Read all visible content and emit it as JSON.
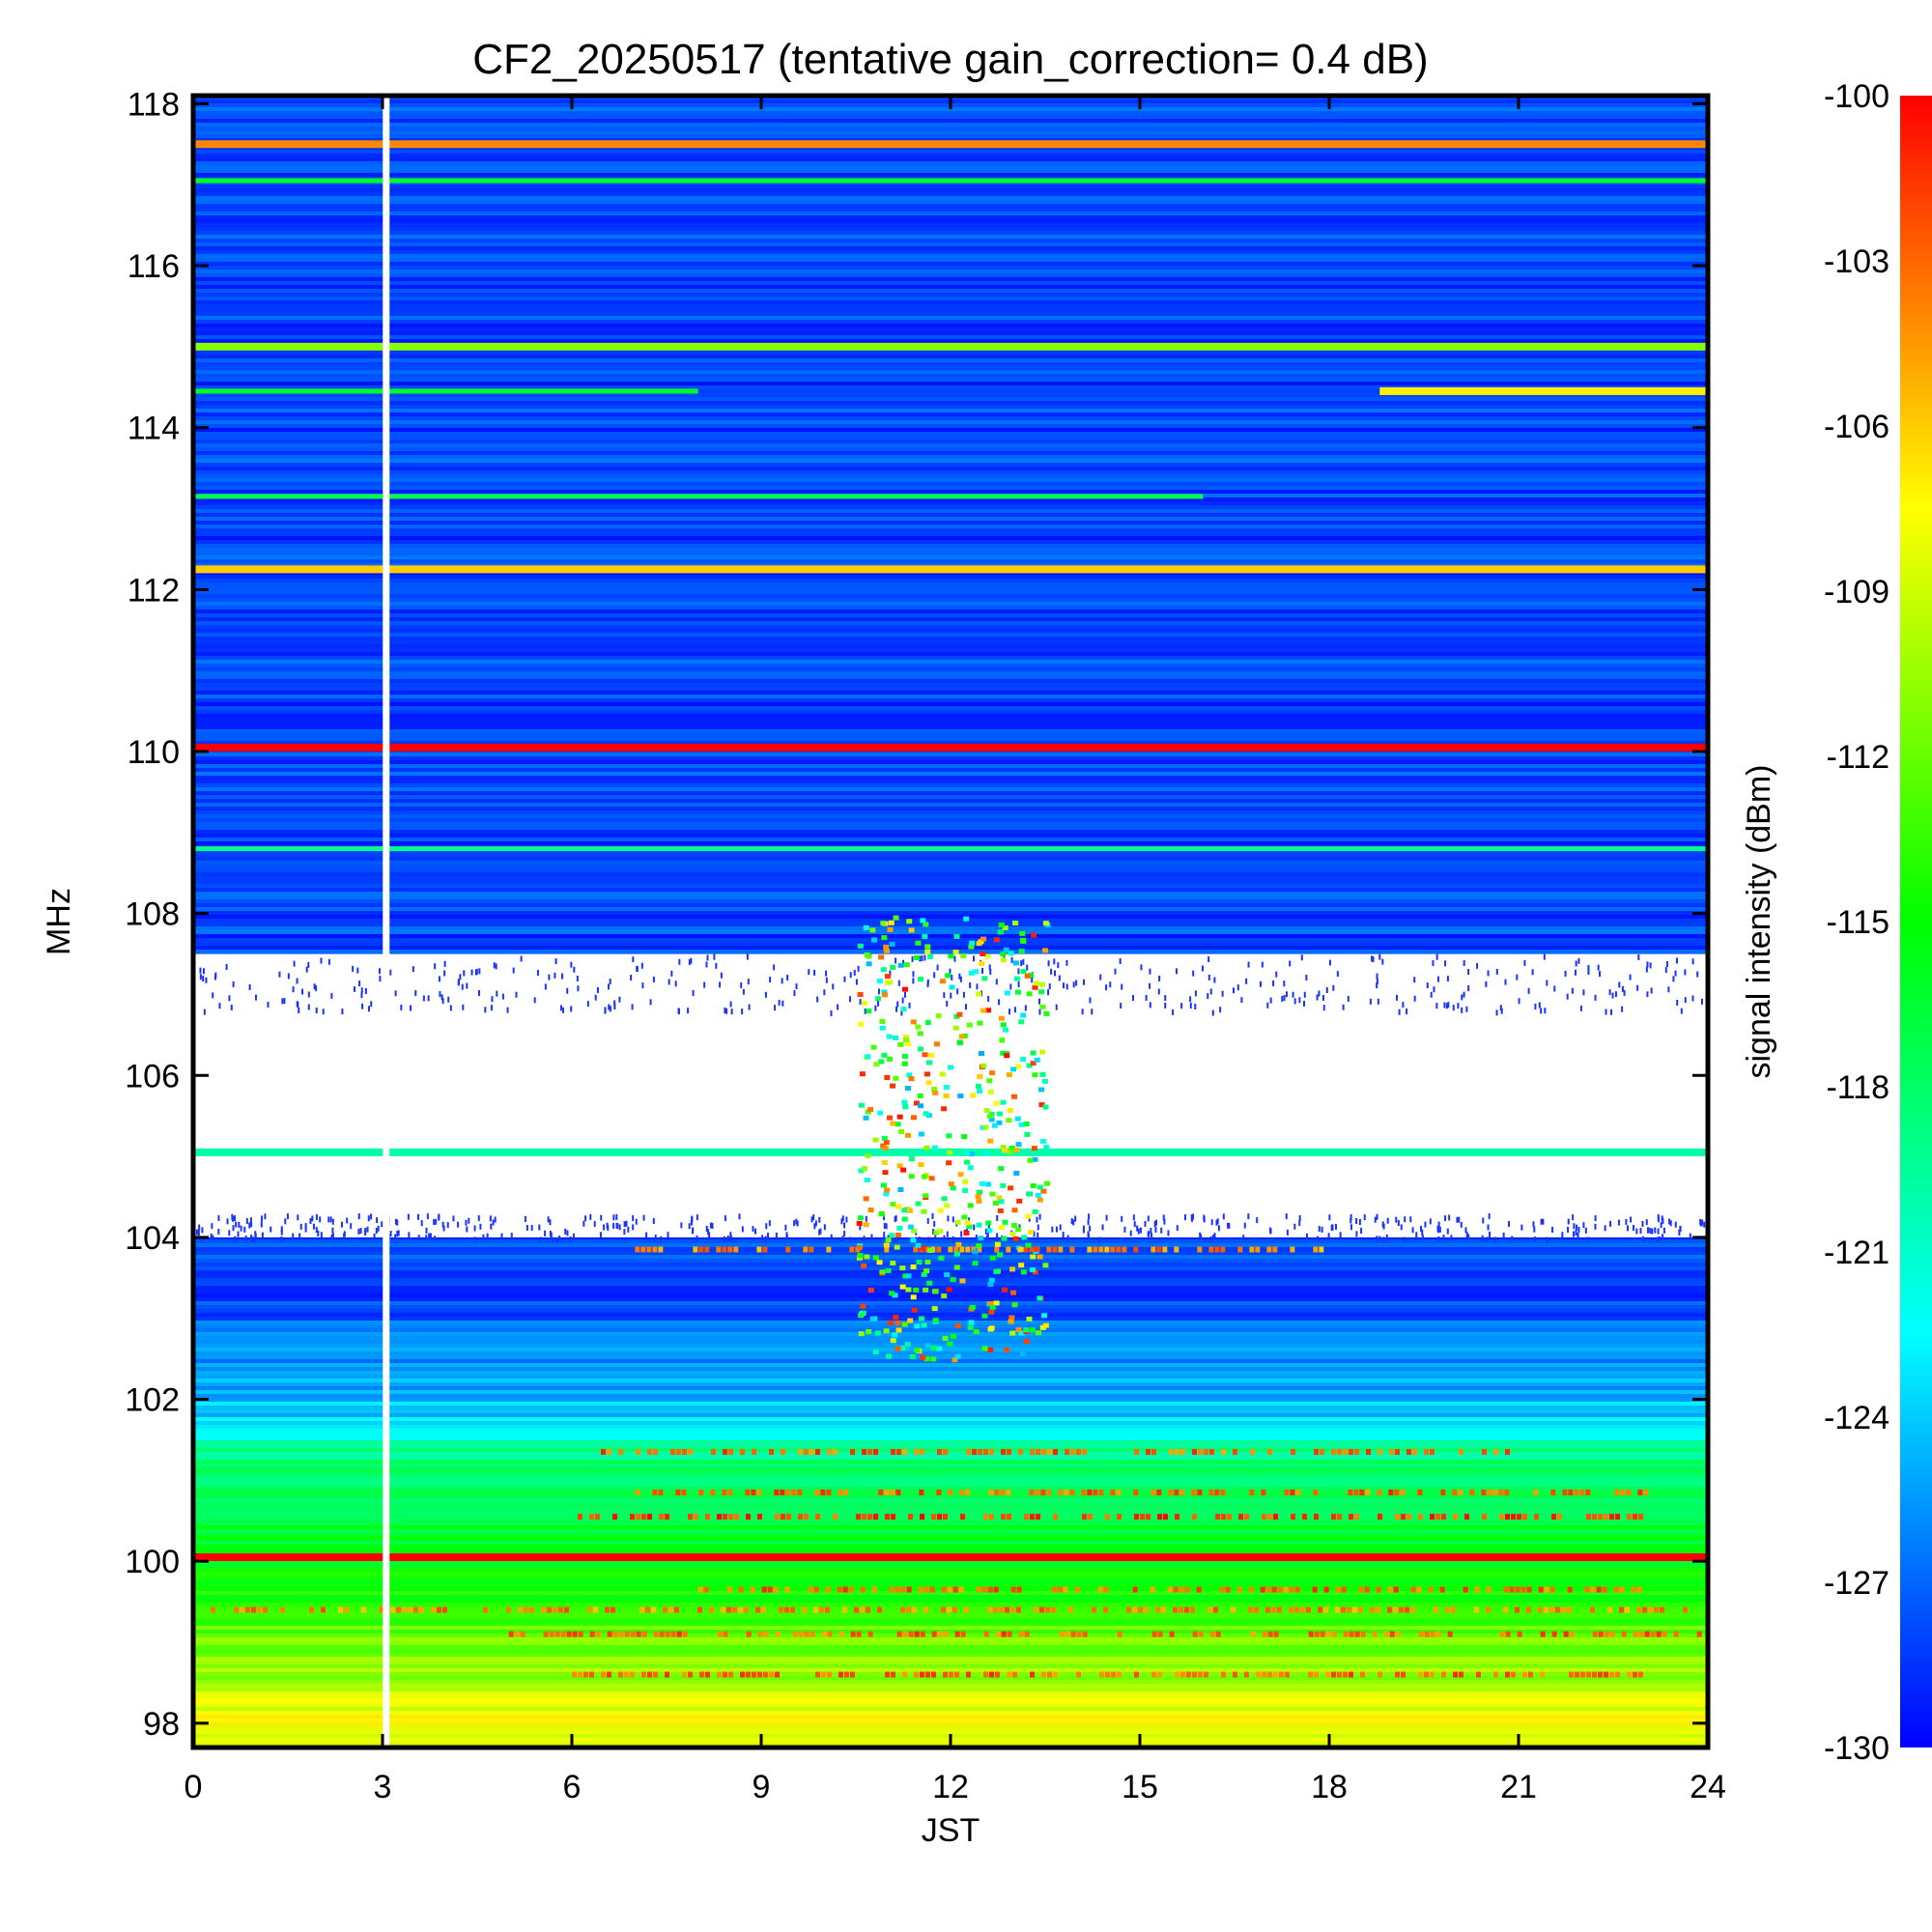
{
  "chart_data": {
    "type": "heatmap",
    "title": "CF2_20250517 (tentative gain_correction=  0.4 dB)",
    "xlabel": "JST",
    "ylabel": "MHz",
    "colorbar_label": "signal intensity (dBm)",
    "xlim": [
      0,
      24
    ],
    "ylim": [
      97.7,
      118.1
    ],
    "clim": [
      -130,
      -100
    ],
    "xticks": [
      "0",
      "3",
      "6",
      "9",
      "12",
      "15",
      "18",
      "21",
      "24"
    ],
    "yticks": [
      "98",
      "100",
      "102",
      "104",
      "106",
      "108",
      "110",
      "112",
      "114",
      "116",
      "118"
    ],
    "colorbar_ticks": [
      "-100",
      "-103",
      "-106",
      "-109",
      "-112",
      "-115",
      "-118",
      "-121",
      "-124",
      "-127",
      "-130"
    ],
    "colormap": [
      "#0000ff",
      "#00ffff",
      "#00ff00",
      "#ffff00",
      "#ff0000"
    ],
    "data_gap_time": 3.05,
    "blocked_band_mhz": [
      104.0,
      107.5
    ],
    "bands": [
      {
        "freq": 117.5,
        "start": 0,
        "end": 24,
        "level": -104,
        "kind": "strong"
      },
      {
        "freq": 117.05,
        "start": 0,
        "end": 24,
        "level": -116,
        "kind": "line"
      },
      {
        "freq": 115.0,
        "start": 0,
        "end": 24,
        "level": -111,
        "kind": "strong"
      },
      {
        "freq": 114.45,
        "start": 0,
        "end": 8,
        "level": -116,
        "kind": "line"
      },
      {
        "freq": 114.45,
        "start": 18.8,
        "end": 24,
        "level": -107,
        "kind": "strong"
      },
      {
        "freq": 113.15,
        "start": 0,
        "end": 16,
        "level": -117,
        "kind": "line"
      },
      {
        "freq": 112.25,
        "start": 0,
        "end": 24,
        "level": -106,
        "kind": "strong"
      },
      {
        "freq": 110.05,
        "start": 0,
        "end": 24,
        "level": -100,
        "kind": "strong"
      },
      {
        "freq": 108.8,
        "start": 0,
        "end": 24,
        "level": -119,
        "kind": "line"
      },
      {
        "freq": 105.05,
        "start": 0,
        "end": 24,
        "level": -120,
        "kind": "strong"
      },
      {
        "freq": 100.05,
        "start": 0,
        "end": 24,
        "level": -100,
        "kind": "strong"
      },
      {
        "freq": 99.65,
        "start": 8,
        "end": 23,
        "level": -103,
        "kind": "dashed"
      },
      {
        "freq": 99.4,
        "start": 0,
        "end": 24,
        "level": -104,
        "kind": "dashed"
      },
      {
        "freq": 99.1,
        "start": 5,
        "end": 24,
        "level": -103,
        "kind": "dashed"
      },
      {
        "freq": 98.6,
        "start": 6,
        "end": 23,
        "level": -103,
        "kind": "dashed"
      },
      {
        "freq": 100.55,
        "start": 6,
        "end": 23,
        "level": -102,
        "kind": "dashed"
      },
      {
        "freq": 100.85,
        "start": 7,
        "end": 23,
        "level": -103,
        "kind": "dashed"
      },
      {
        "freq": 101.35,
        "start": 6,
        "end": 21,
        "level": -103,
        "kind": "dashed"
      },
      {
        "freq": 103.85,
        "start": 7,
        "end": 18,
        "level": -104,
        "kind": "dashed"
      }
    ]
  }
}
